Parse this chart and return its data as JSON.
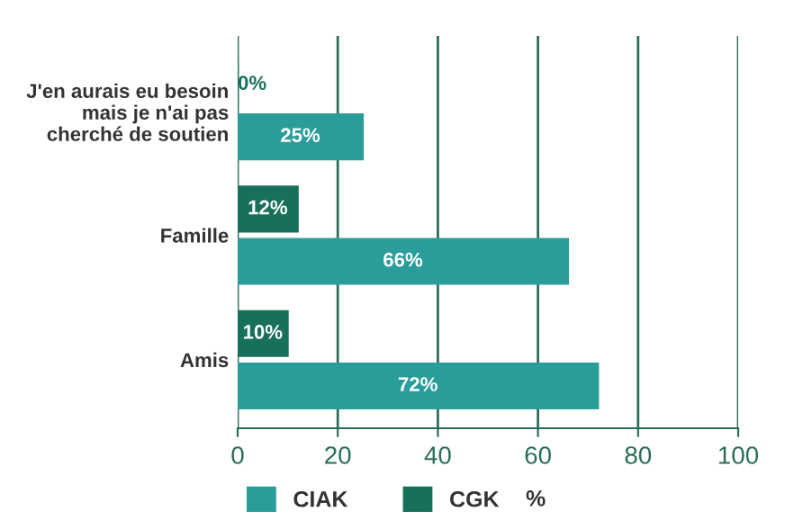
{
  "chart_data": {
    "type": "bar",
    "orientation": "horizontal",
    "categories": [
      "J'en aurais eu besoin mais je n'ai pas cherché de soutien",
      "Famille",
      "Amis"
    ],
    "series": [
      {
        "name": "CGK",
        "color": "#17705a",
        "values": [
          0,
          12,
          10
        ],
        "value_labels": [
          "0%",
          "12%",
          "10%"
        ]
      },
      {
        "name": "CIAK",
        "color": "#2a9d9a",
        "values": [
          25,
          66,
          72
        ],
        "value_labels": [
          "25%",
          "66%",
          "72%"
        ]
      }
    ],
    "xlabel": "%",
    "xlim": [
      0,
      100
    ],
    "xticks": [
      0,
      20,
      40,
      60,
      80,
      100
    ],
    "grid": "x",
    "legend": "bottom"
  }
}
